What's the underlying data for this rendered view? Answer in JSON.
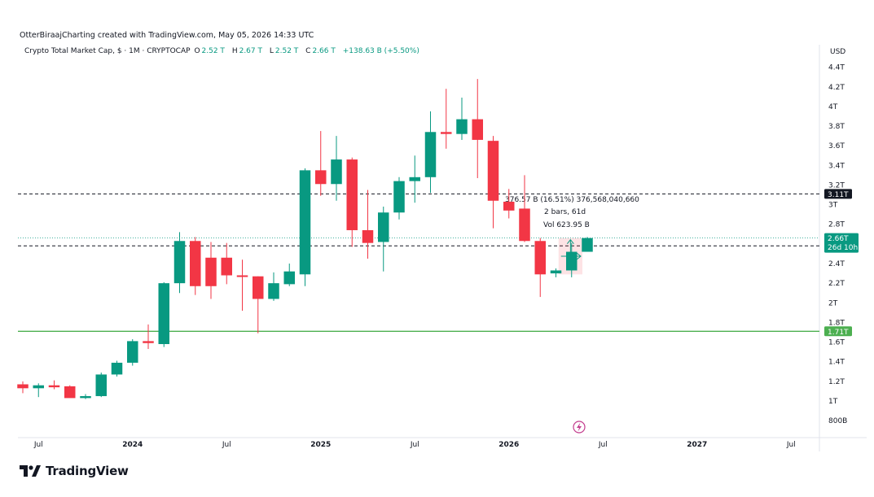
{
  "header": {
    "credit": "OtterBiraajCharting created with TradingView.com, May 05, 2026 14:33 UTC",
    "symbol": "Crypto Total Market Cap, $ · 1M · CRYPTOCAP",
    "ohlc": {
      "o_label": "O",
      "o": "2.52 T",
      "h_label": "H",
      "h": "2.67 T",
      "l_label": "L",
      "l": "2.52 T",
      "c_label": "C",
      "c": "2.66 T",
      "change": "+138.63 B (+5.50%)"
    },
    "currency": "USD"
  },
  "footer": {
    "logo_text": "TradingView"
  },
  "colors": {
    "up": "#089981",
    "down": "#f23645",
    "level": "#4caf50",
    "background": "#ffffff"
  },
  "chart_data": {
    "type": "candlestick",
    "interval": "1M",
    "y_unit": "USD (trillions)",
    "y_ticks": [
      0.8,
      1,
      1.2,
      1.4,
      1.6,
      1.8,
      2,
      2.2,
      2.4,
      2.6,
      2.8,
      3,
      3.2,
      3.4,
      3.6,
      3.8,
      4,
      4.2,
      4.4
    ],
    "y_tick_labels": [
      "800B",
      "1T",
      "1.2T",
      "1.4T",
      "1.6T",
      "1.8T",
      "2T",
      "2.2T",
      "2.4T",
      "2.6T",
      "2.8T",
      "3T",
      "3.2T",
      "3.4T",
      "3.6T",
      "3.8T",
      "4T",
      "4.2T",
      "4.4T"
    ],
    "x_ticks": [
      "2023-07",
      "2024-01",
      "2024-07",
      "2025-01",
      "2025-07",
      "2026-01",
      "2026-07",
      "2027-01",
      "2027-07"
    ],
    "x_tick_labels": [
      "Jul",
      "2024",
      "Jul",
      "2025",
      "Jul",
      "2026",
      "Jul",
      "2027",
      "Jul"
    ],
    "candles": [
      {
        "month": "2023-06",
        "o": 1.17,
        "h": 1.2,
        "l": 1.08,
        "c": 1.13
      },
      {
        "month": "2023-07",
        "o": 1.13,
        "h": 1.18,
        "l": 1.04,
        "c": 1.16
      },
      {
        "month": "2023-08",
        "o": 1.16,
        "h": 1.21,
        "l": 1.12,
        "c": 1.14
      },
      {
        "month": "2023-09",
        "o": 1.15,
        "h": 1.16,
        "l": 1.04,
        "c": 1.03
      },
      {
        "month": "2023-10",
        "o": 1.03,
        "h": 1.07,
        "l": 1.02,
        "c": 1.05
      },
      {
        "month": "2023-11",
        "o": 1.05,
        "h": 1.29,
        "l": 1.04,
        "c": 1.27
      },
      {
        "month": "2023-12",
        "o": 1.27,
        "h": 1.41,
        "l": 1.25,
        "c": 1.39
      },
      {
        "month": "2024-01",
        "o": 1.39,
        "h": 1.63,
        "l": 1.36,
        "c": 1.61
      },
      {
        "month": "2024-02",
        "o": 1.61,
        "h": 1.78,
        "l": 1.53,
        "c": 1.59
      },
      {
        "month": "2024-03",
        "o": 1.58,
        "h": 2.21,
        "l": 1.55,
        "c": 2.2
      },
      {
        "month": "2024-04",
        "o": 2.2,
        "h": 2.72,
        "l": 2.1,
        "c": 2.63
      },
      {
        "month": "2024-05",
        "o": 2.63,
        "h": 2.67,
        "l": 2.08,
        "c": 2.17
      },
      {
        "month": "2024-06",
        "o": 2.46,
        "h": 2.62,
        "l": 2.04,
        "c": 2.17
      },
      {
        "month": "2024-07",
        "o": 2.46,
        "h": 2.61,
        "l": 2.19,
        "c": 2.28
      },
      {
        "month": "2024-08",
        "o": 2.28,
        "h": 2.44,
        "l": 1.92,
        "c": 2.27
      },
      {
        "month": "2024-09",
        "o": 2.27,
        "h": 2.27,
        "l": 1.69,
        "c": 2.04
      },
      {
        "month": "2024-10",
        "o": 2.04,
        "h": 2.31,
        "l": 2.02,
        "c": 2.2
      },
      {
        "month": "2024-11",
        "o": 2.19,
        "h": 2.4,
        "l": 2.17,
        "c": 2.32
      },
      {
        "month": "2024-12",
        "o": 2.29,
        "h": 3.37,
        "l": 2.17,
        "c": 3.35
      },
      {
        "month": "2025-01",
        "o": 3.35,
        "h": 3.75,
        "l": 3.09,
        "c": 3.21
      },
      {
        "month": "2025-02",
        "o": 3.21,
        "h": 3.7,
        "l": 3.04,
        "c": 3.46
      },
      {
        "month": "2025-03",
        "o": 3.46,
        "h": 3.48,
        "l": 2.57,
        "c": 2.74
      },
      {
        "month": "2025-04",
        "o": 2.74,
        "h": 3.15,
        "l": 2.45,
        "c": 2.61
      },
      {
        "month": "2025-05",
        "o": 2.62,
        "h": 2.98,
        "l": 2.32,
        "c": 2.92
      },
      {
        "month": "2025-06",
        "o": 2.92,
        "h": 3.28,
        "l": 2.85,
        "c": 3.24
      },
      {
        "month": "2025-07",
        "o": 3.24,
        "h": 3.5,
        "l": 3.02,
        "c": 3.28
      },
      {
        "month": "2025-08",
        "o": 3.28,
        "h": 3.95,
        "l": 3.12,
        "c": 3.74
      },
      {
        "month": "2025-09",
        "o": 3.74,
        "h": 4.18,
        "l": 3.57,
        "c": 3.72
      },
      {
        "month": "2025-10",
        "o": 3.72,
        "h": 4.09,
        "l": 3.66,
        "c": 3.87
      },
      {
        "month": "2025-11",
        "o": 3.87,
        "h": 4.28,
        "l": 3.27,
        "c": 3.66
      },
      {
        "month": "2025-12",
        "o": 3.65,
        "h": 3.7,
        "l": 2.76,
        "c": 3.04
      },
      {
        "month": "2026-01",
        "o": 3.03,
        "h": 3.16,
        "l": 2.86,
        "c": 2.94
      },
      {
        "month": "2026-02",
        "o": 2.96,
        "h": 3.3,
        "l": 2.62,
        "c": 2.63
      },
      {
        "month": "2026-03",
        "o": 2.63,
        "h": 2.66,
        "l": 2.06,
        "c": 2.29
      },
      {
        "month": "2026-04",
        "o": 2.3,
        "h": 2.35,
        "l": 2.26,
        "c": 2.33
      },
      {
        "month": "2026-05",
        "o": 2.33,
        "h": 2.61,
        "l": 2.26,
        "c": 2.52
      },
      {
        "month": "2026-06",
        "o": 2.52,
        "h": 2.67,
        "l": 2.52,
        "c": 2.66
      }
    ],
    "lines": [
      {
        "style": "dashed",
        "value": 3.11,
        "label": "3.11T"
      },
      {
        "style": "dashed",
        "value": 2.58,
        "label": "2.58T"
      },
      {
        "style": "solid",
        "value": 1.71,
        "label": "1.71T"
      },
      {
        "style": "dotted",
        "value": 2.66,
        "label": "2.66T"
      }
    ],
    "price_label": {
      "value": "2.66T",
      "countdown": "26d 10h"
    },
    "measure": {
      "line1": "376.57 B (16.51%) 376,568,040,660",
      "line2": "2 bars, 61d",
      "line3": "Vol 623.95 B"
    }
  }
}
